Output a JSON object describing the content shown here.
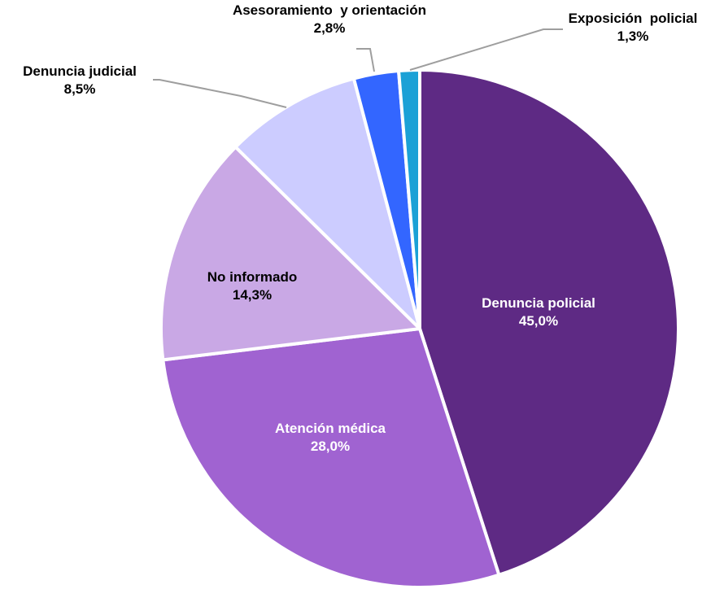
{
  "chart_data": {
    "type": "pie",
    "title": "",
    "slices": [
      {
        "label": "Denuncia policial",
        "value": 45.0,
        "value_label": "45,0%",
        "color": "#5E2A84",
        "text_color": "#ffffff",
        "label_position": "inside"
      },
      {
        "label": "Atención médica",
        "value": 28.0,
        "value_label": "28,0%",
        "color": "#A063D1",
        "text_color": "#ffffff",
        "label_position": "inside"
      },
      {
        "label": "No informado",
        "value": 14.3,
        "value_label": "14,3%",
        "color": "#C9A8E5",
        "text_color": "#000000",
        "label_position": "inside"
      },
      {
        "label": "Denuncia judicial",
        "value": 8.5,
        "value_label": "8,5%",
        "color": "#CCCCFF",
        "text_color": "#000000",
        "label_position": "outside"
      },
      {
        "label": "Asesoramiento  y orientación",
        "value": 2.8,
        "value_label": "2,8%",
        "color": "#3366FF",
        "text_color": "#000000",
        "label_position": "outside"
      },
      {
        "label": "Exposición  policial",
        "value": 1.3,
        "value_label": "1,3%",
        "color": "#1BA1D6",
        "text_color": "#000000",
        "label_position": "outside"
      }
    ],
    "start_angle_deg": 0,
    "direction": "clockwise",
    "legend": "none"
  }
}
